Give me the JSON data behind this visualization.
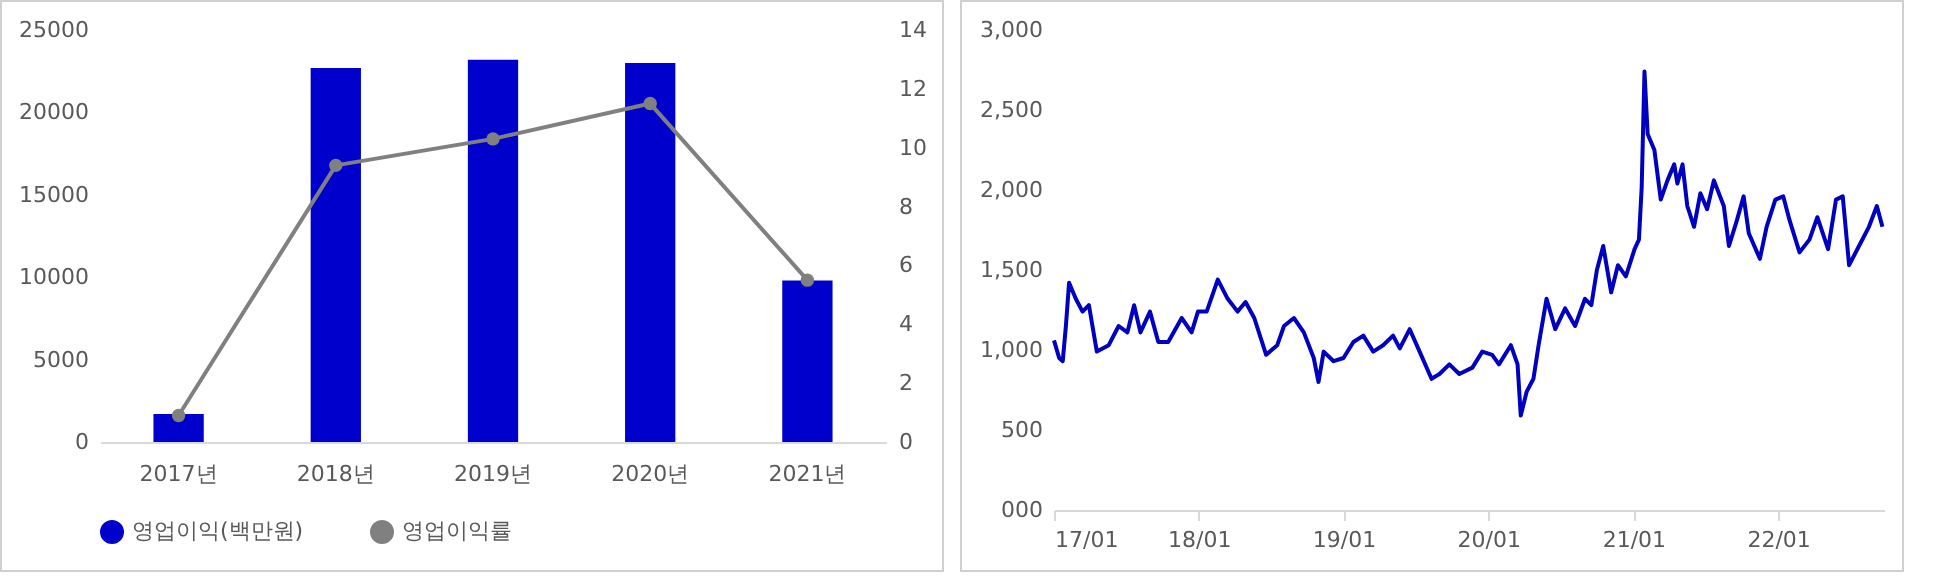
{
  "chart_data": [
    {
      "type": "bar",
      "categories": [
        "2017년",
        "2018년",
        "2019년",
        "2020년",
        "2021년"
      ],
      "series": [
        {
          "name": "영업이익(백만원)",
          "color": "#0000cc",
          "values": [
            1700,
            22700,
            23200,
            23000,
            9800
          ]
        },
        {
          "name": "영업이익률",
          "type": "line",
          "axis": "y2",
          "color": "#808080",
          "values": [
            0.9,
            9.4,
            10.3,
            11.5,
            5.5
          ]
        }
      ],
      "ylim": [
        0,
        25000
      ],
      "yticks": [
        0,
        5000,
        10000,
        15000,
        20000,
        25000
      ],
      "y2lim": [
        0,
        14
      ],
      "y2ticks": [
        0,
        2,
        4,
        6,
        8,
        10,
        12,
        14
      ],
      "marker": "circle",
      "legend": "bottom",
      "grid": false
    },
    {
      "type": "line",
      "x": [
        "2017-01-01",
        "2017-01-14",
        "2017-01-23",
        "2017-01-31",
        "2017-02-08",
        "2017-02-25",
        "2017-03-14",
        "2017-03-30",
        "2017-04-08",
        "2017-04-19",
        "2017-05-19",
        "2017-06-13",
        "2017-07-05",
        "2017-07-22",
        "2017-08-07",
        "2017-08-31",
        "2017-09-21",
        "2017-10-16",
        "2017-11-19",
        "2017-12-14",
        "2017-12-30",
        "2018-01-21",
        "2018-02-18",
        "2018-03-15",
        "2018-04-09",
        "2018-04-29",
        "2018-05-21",
        "2018-06-20",
        "2018-07-18",
        "2018-08-04",
        "2018-08-29",
        "2018-09-23",
        "2018-10-18",
        "2018-10-30",
        "2018-11-12",
        "2018-12-07",
        "2019-01-01",
        "2019-01-26",
        "2019-02-20",
        "2019-03-17",
        "2019-04-11",
        "2019-05-06",
        "2019-05-23",
        "2019-06-17",
        "2019-07-12",
        "2019-08-11",
        "2019-08-31",
        "2019-09-25",
        "2019-10-20",
        "2019-11-22",
        "2019-12-17",
        "2020-01-11",
        "2020-01-28",
        "2020-02-27",
        "2020-03-15",
        "2020-03-23",
        "2020-04-07",
        "2020-04-24",
        "2020-05-07",
        "2020-05-27",
        "2020-06-18",
        "2020-07-13",
        "2020-08-07",
        "2020-09-01",
        "2020-09-17",
        "2020-10-01",
        "2020-10-17",
        "2020-11-06",
        "2020-11-23",
        "2020-12-13",
        "2021-01-04",
        "2021-01-15",
        "2021-01-22",
        "2021-01-29",
        "2021-02-06",
        "2021-02-23",
        "2021-03-11",
        "2021-03-28",
        "2021-04-14",
        "2021-04-22",
        "2021-05-05",
        "2021-05-17",
        "2021-06-03",
        "2021-06-19",
        "2021-07-06",
        "2021-07-23",
        "2021-08-17",
        "2021-08-30",
        "2021-09-19",
        "2021-10-06",
        "2021-10-19",
        "2021-11-16",
        "2021-12-03",
        "2021-12-25",
        "2022-01-14",
        "2022-01-30",
        "2022-02-24",
        "2022-03-21",
        "2022-04-10",
        "2022-05-07",
        "2022-05-27",
        "2022-06-13",
        "2022-06-29",
        "2022-07-24",
        "2022-08-18",
        "2022-09-07",
        "2022-09-21"
      ],
      "series": [
        {
          "color": "#0000c0",
          "values": [
            1060,
            950,
            930,
            1150,
            1420,
            1320,
            1240,
            1280,
            1150,
            990,
            1030,
            1150,
            1110,
            1280,
            1110,
            1240,
            1050,
            1050,
            1200,
            1110,
            1240,
            1240,
            1440,
            1320,
            1240,
            1300,
            1200,
            970,
            1030,
            1150,
            1200,
            1110,
            950,
            800,
            990,
            930,
            950,
            1050,
            1090,
            990,
            1030,
            1090,
            1010,
            1130,
            990,
            820,
            850,
            910,
            850,
            890,
            990,
            970,
            910,
            1030,
            910,
            590,
            740,
            820,
            1030,
            1320,
            1130,
            1260,
            1150,
            1320,
            1280,
            1500,
            1650,
            1360,
            1530,
            1460,
            1630,
            1690,
            2020,
            2740,
            2350,
            2250,
            1940,
            2060,
            2160,
            2040,
            2160,
            1900,
            1770,
            1980,
            1880,
            2060,
            1900,
            1650,
            1810,
            1960,
            1730,
            1570,
            1770,
            1940,
            1960,
            1810,
            1610,
            1690,
            1830,
            1630,
            1940,
            1960,
            1530,
            1650,
            1770,
            1900,
            1770
          ]
        }
      ],
      "xlim": [
        "2017-01-01",
        "2022-09-25"
      ],
      "xticks": [
        {
          "value": "2017-01-01",
          "label": "17/01"
        },
        {
          "value": "2018-01-01",
          "label": "18/01"
        },
        {
          "value": "2019-01-01",
          "label": "19/01"
        },
        {
          "value": "2020-01-01",
          "label": "20/01"
        },
        {
          "value": "2021-01-01",
          "label": "21/01"
        },
        {
          "value": "2022-01-01",
          "label": "22/01"
        }
      ],
      "ylim": [
        0,
        3000
      ],
      "yticks": [
        {
          "value": 0,
          "label": "000"
        },
        {
          "value": 500,
          "label": "500"
        },
        {
          "value": 1000,
          "label": "1,000"
        },
        {
          "value": 1500,
          "label": "1,500"
        },
        {
          "value": 2000,
          "label": "2,000"
        },
        {
          "value": 2500,
          "label": "2,500"
        },
        {
          "value": 3000,
          "label": "3,000"
        }
      ],
      "grid": false
    }
  ]
}
